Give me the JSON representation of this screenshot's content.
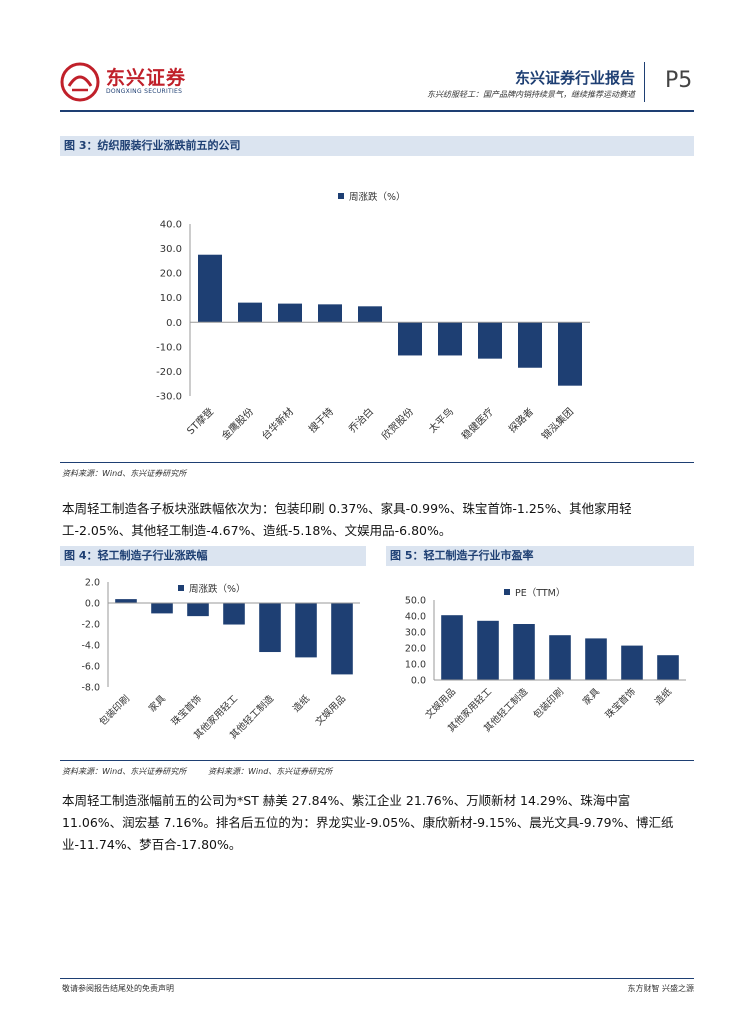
{
  "header": {
    "logo_cn": "东兴证券",
    "logo_en": "DONGXING SECURITIES",
    "report_title": "东兴证券行业报告",
    "report_subtitle": "东兴纺服轻工：国产品牌内销持续景气，继续推荐运动赛道",
    "page_no": "P5"
  },
  "figure3": {
    "title": "图 3：纺织服装行业涨跌前五的公司",
    "source": "资料来源：Wind、东兴证券研究所"
  },
  "paragraph1": "本周轻工制造各子板块涨跌幅依次为：包装印刷 0.37%、家具-0.99%、珠宝首饰-1.25%、其他家用轻工-2.05%、其他轻工制造-4.67%、造纸-5.18%、文娱用品-6.80%。",
  "figure4": {
    "title": "图 4：轻工制造子行业涨跌幅",
    "source": "资料来源：Wind、东兴证券研究所"
  },
  "figure5": {
    "title": "图 5：轻工制造子行业市盈率",
    "source": "资料来源：Wind、东兴证券研究所"
  },
  "paragraph2": "本周轻工制造涨幅前五的公司为*ST 赫美 27.84%、紫江企业 21.76%、万顺新材 14.29%、珠海中富 11.06%、润宏基 7.16%。排名后五位的为：界龙实业-9.05%、康欣新材-9.15%、晨光文具-9.79%、博汇纸业-11.74%、梦百合-17.80%。",
  "footer": {
    "left": "敬请参阅报告结尾处的免责声明",
    "right": "东方财智 兴盛之源"
  },
  "colors": {
    "bar": "#1e3f73",
    "accent": "#c0202a",
    "band": "#dbe4f0"
  },
  "chart_data": [
    {
      "type": "bar",
      "title": "",
      "legend": "周涨跌（%）",
      "categories": [
        "ST摩登",
        "金鹰股份",
        "台华新材",
        "搜于特",
        "乔治白",
        "欣贺股份",
        "太平鸟",
        "稳健医疗",
        "探路者",
        "锦泓集团"
      ],
      "values": [
        27.5,
        8.0,
        7.6,
        7.3,
        6.5,
        -13.5,
        -13.5,
        -14.8,
        -18.5,
        -25.8
      ],
      "ylim": [
        -30,
        40
      ],
      "yticks": [
        "40.0",
        "30.0",
        "20.0",
        "10.0",
        "0.0",
        "-10.0",
        "-20.0",
        "-30.0"
      ]
    },
    {
      "type": "bar",
      "title": "",
      "legend": "周涨跌（%）",
      "categories": [
        "包装印刷",
        "家具",
        "珠宝首饰",
        "其他家用轻工",
        "其他轻工制造",
        "造纸",
        "文娱用品"
      ],
      "values": [
        0.37,
        -0.99,
        -1.25,
        -2.05,
        -4.67,
        -5.18,
        -6.8
      ],
      "ylim": [
        -8,
        2
      ],
      "yticks": [
        "2.0",
        "0.0",
        "-2.0",
        "-4.0",
        "-6.0",
        "-8.0"
      ]
    },
    {
      "type": "bar",
      "title": "",
      "legend": "PE（TTM）",
      "categories": [
        "文娱用品",
        "其他家用轻工",
        "其他轻工制造",
        "包装印刷",
        "家具",
        "珠宝首饰",
        "造纸"
      ],
      "values": [
        40.5,
        37.0,
        35.0,
        28.0,
        26.0,
        21.5,
        15.5
      ],
      "ylim": [
        0,
        50
      ],
      "yticks": [
        "50.0",
        "40.0",
        "30.0",
        "20.0",
        "10.0",
        "0.0"
      ]
    }
  ]
}
